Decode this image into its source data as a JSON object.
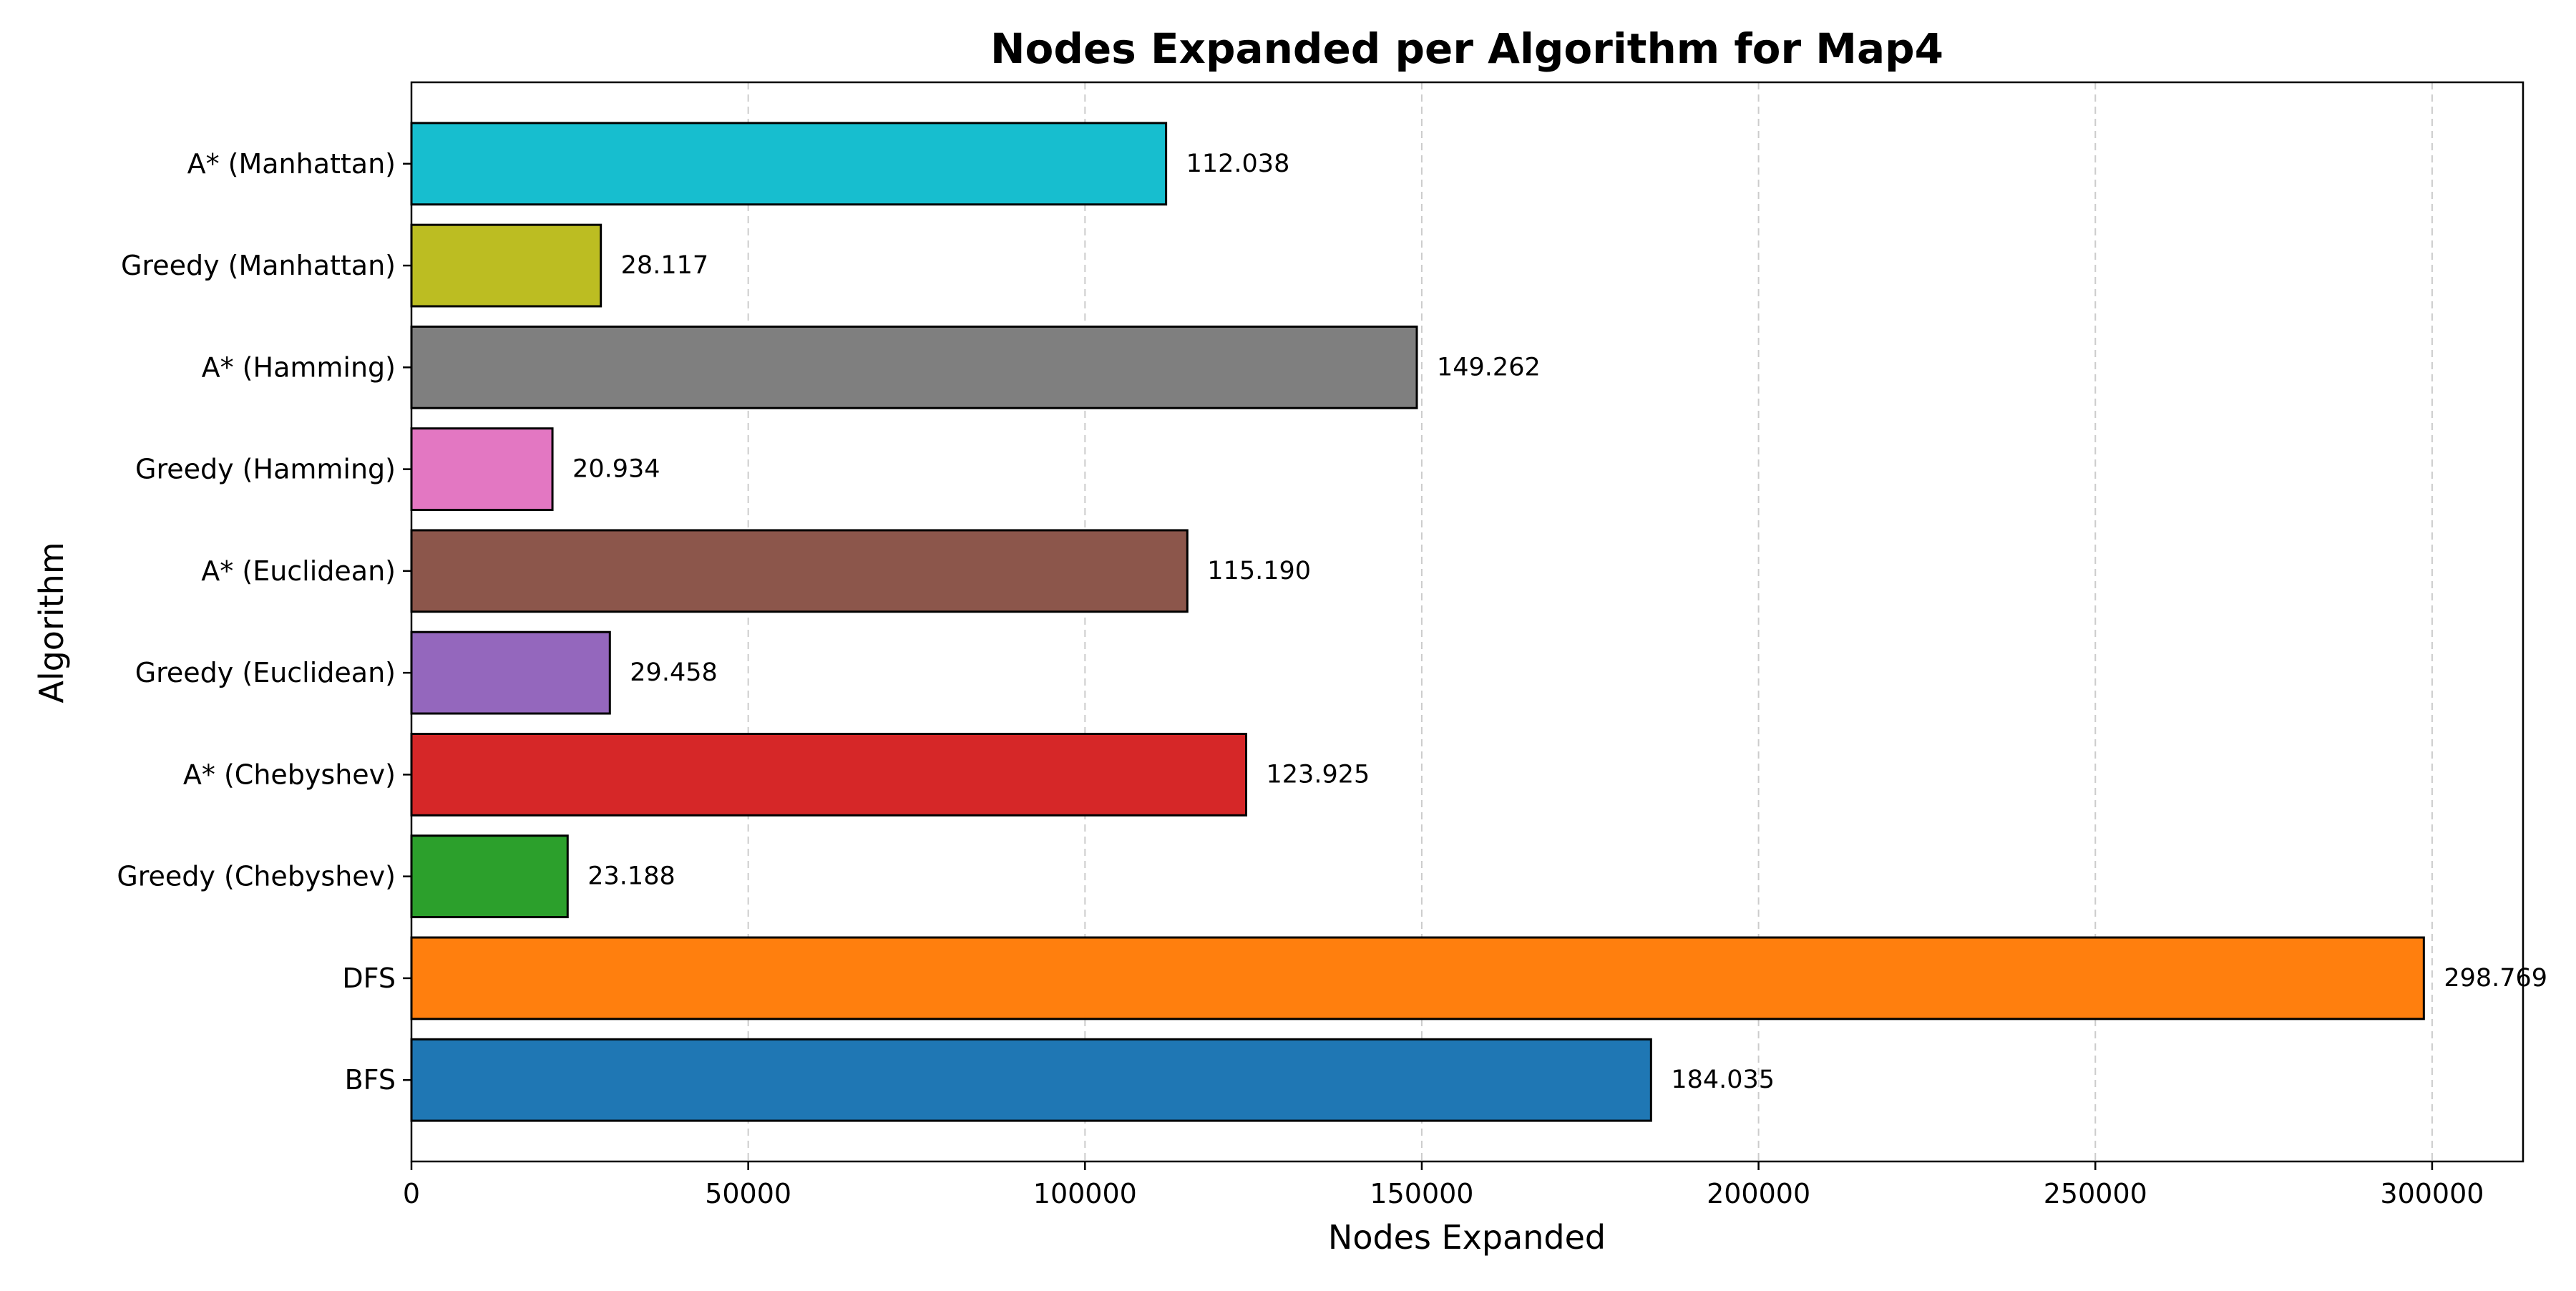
{
  "chart_data": {
    "type": "bar",
    "orientation": "horizontal",
    "title": "Nodes Expanded per Algorithm for Map4",
    "xlabel": "Nodes Expanded",
    "ylabel": "Algorithm",
    "xlim": [
      0,
      313500
    ],
    "xticks": [
      0,
      50000,
      100000,
      150000,
      200000,
      250000,
      300000
    ],
    "xtick_labels": [
      "0",
      "50000",
      "100000",
      "150000",
      "200000",
      "250000",
      "300000"
    ],
    "grid": {
      "x": true,
      "y": false,
      "style": "dashed"
    },
    "legend": "none",
    "categories": [
      "BFS",
      "DFS",
      "Greedy (Chebyshev)",
      "A* (Chebyshev)",
      "Greedy (Euclidean)",
      "A* (Euclidean)",
      "Greedy (Hamming)",
      "A* (Hamming)",
      "Greedy (Manhattan)",
      "A* (Manhattan)"
    ],
    "values": [
      184035,
      298769,
      23188,
      123925,
      29458,
      115190,
      20934,
      149262,
      28117,
      112038
    ],
    "value_labels": [
      "184.035",
      "298.769",
      "23.188",
      "123.925",
      "29.458",
      "115.190",
      "20.934",
      "149.262",
      "28.117",
      "112.038"
    ],
    "colors": [
      "#1f77b4",
      "#ff7f0e",
      "#2ca02c",
      "#d62728",
      "#9467bd",
      "#8c564b",
      "#e377c2",
      "#7f7f7f",
      "#bcbd22",
      "#17becf"
    ],
    "bar_edge_color": "#000000",
    "grid_color": "#cccccc"
  }
}
